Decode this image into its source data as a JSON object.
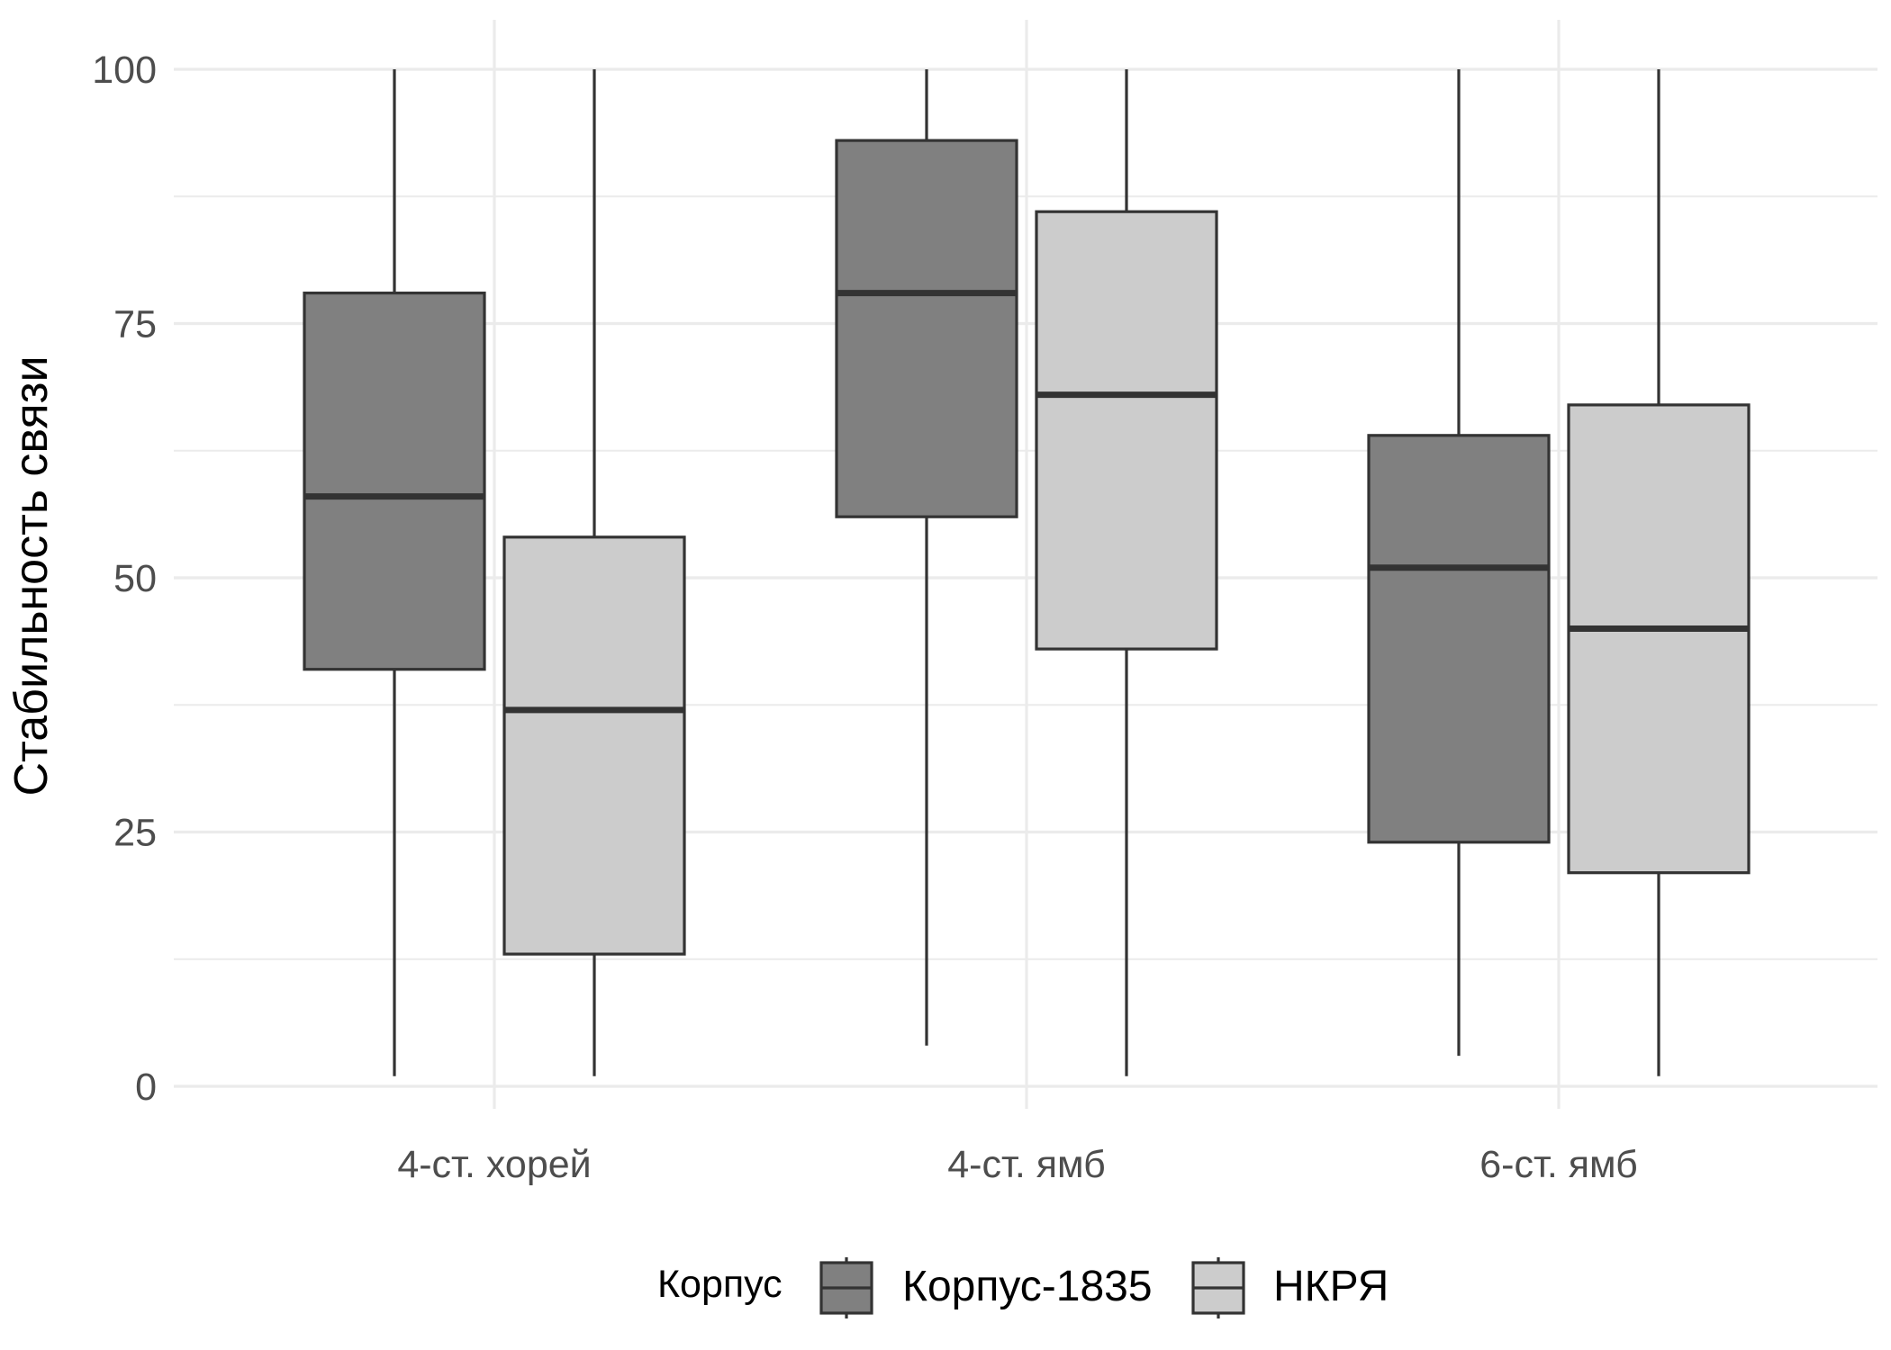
{
  "chart_data": {
    "type": "boxplot",
    "categories": [
      "4-ст. хорей",
      "4-ст. ямб",
      "6-ст. ямб"
    ],
    "ylabel": "Стабильность связи",
    "xlabel": "",
    "ylim": [
      0,
      100
    ],
    "y_ticks": [
      0,
      25,
      50,
      75,
      100
    ],
    "grid": true,
    "legend": {
      "title": "Корпус",
      "position": "bottom"
    },
    "series": [
      {
        "name": "Корпус-1835",
        "color": "#808080",
        "boxes": [
          {
            "min": 1,
            "q1": 41,
            "median": 58,
            "q3": 78,
            "max": 100
          },
          {
            "min": 4,
            "q1": 56,
            "median": 78,
            "q3": 93,
            "max": 100
          },
          {
            "min": 3,
            "q1": 24,
            "median": 51,
            "q3": 64,
            "max": 100
          }
        ]
      },
      {
        "name": "НКРЯ",
        "color": "#cccccc",
        "boxes": [
          {
            "min": 1,
            "q1": 13,
            "median": 37,
            "q3": 54,
            "max": 100
          },
          {
            "min": 1,
            "q1": 43,
            "median": 68,
            "q3": 86,
            "max": 100
          },
          {
            "min": 1,
            "q1": 21,
            "median": 45,
            "q3": 67,
            "max": 100
          }
        ]
      }
    ],
    "outline_color": "#333333"
  }
}
